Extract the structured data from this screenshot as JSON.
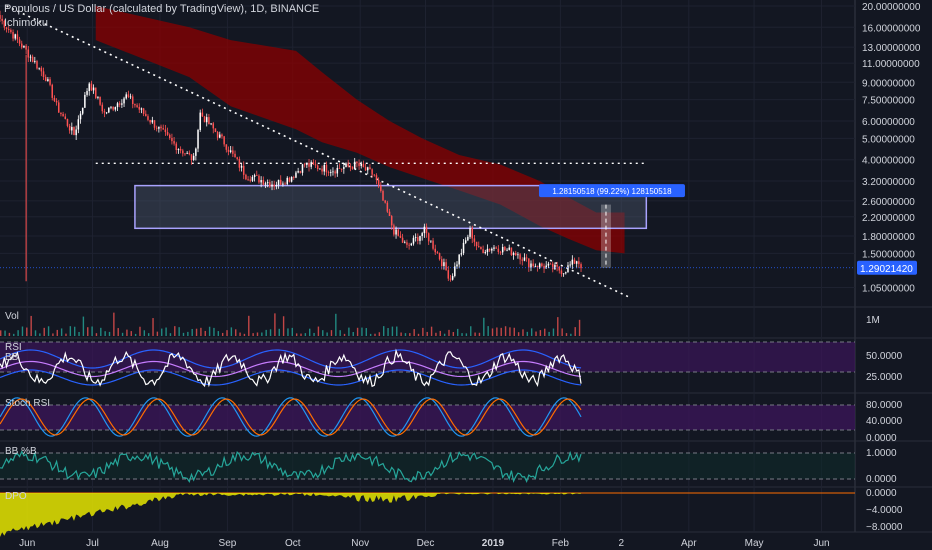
{
  "header": {
    "symbol_line": "Populous / US Dollar (calculated by TradingView), 1D, BINANCE",
    "indicator": "Ichimoku"
  },
  "colors": {
    "background": "#131722",
    "grid": "#1e2230",
    "cloud": "#8b0000",
    "candle_up": "#ffffff",
    "candle_down": "#ff5252",
    "zone_fill": "#4a5568",
    "zone_border": "#a9a3ff",
    "rsi_line": "#ffffff",
    "bb_band": "#2962ff",
    "bb_basis": "#c77dff",
    "panel_purple": "#3a1558",
    "stoch_k": "#2196f3",
    "stoch_d": "#ff6d00",
    "bbpct_line": "#26a69a",
    "dpo_fill": "#e6e600",
    "price_badge": "#2962ff"
  },
  "panels": {
    "vol": {
      "label": "Vol",
      "axis_labels": [
        "1M"
      ]
    },
    "rsi": {
      "label": "RSI",
      "sub_label": "BB",
      "axis_labels": [
        "50.0000",
        "25.0000"
      ]
    },
    "stoch": {
      "label": "Stoch RSI",
      "axis_labels": [
        "80.0000",
        "40.0000",
        "0.0000"
      ]
    },
    "bbpct": {
      "label": "BB %B",
      "axis_labels": [
        "1.0000",
        "0.0000"
      ]
    },
    "dpo": {
      "label": "DPO",
      "axis_labels": [
        "0.0000",
        "−4.0000",
        "−8.0000"
      ]
    }
  },
  "chart_data": {
    "type": "candlestick",
    "x_axis_labels": [
      "Jun",
      "Jul",
      "Aug",
      "Sep",
      "Oct",
      "Nov",
      "Dec",
      "2019",
      "Feb",
      "2",
      "Apr",
      "May",
      "Jun"
    ],
    "price_axis_labels": [
      "20.00000000",
      "16.00000000",
      "13.00000000",
      "11.00000000",
      "9.00000000",
      "7.50000000",
      "6.00000000",
      "5.00000000",
      "4.00000000",
      "3.20000000",
      "2.60000000",
      "2.20000000",
      "1.80000000",
      "1.50000000",
      "1.05000000"
    ],
    "last_price": "1.29021420",
    "measure_label": "1.28150518 (99.22%) 128150518",
    "resistance_level": 3.85,
    "zone": {
      "low": 1.95,
      "high": 3.05
    },
    "price_range": {
      "min": 0.95,
      "max": 20
    },
    "time_range": "2018-05-25 to 2019-06-15",
    "price_path": [
      {
        "date": "2018-05-25",
        "close": 17.5
      },
      {
        "date": "2018-06-06",
        "close": 12.5
      },
      {
        "date": "2018-06-15",
        "close": 9.5
      },
      {
        "date": "2018-06-20",
        "close": 7.0
      },
      {
        "date": "2018-06-28",
        "close": 5.2
      },
      {
        "date": "2018-07-05",
        "close": 9.0
      },
      {
        "date": "2018-07-12",
        "close": 6.5
      },
      {
        "date": "2018-07-22",
        "close": 7.8
      },
      {
        "date": "2018-08-01",
        "close": 6.2
      },
      {
        "date": "2018-08-12",
        "close": 4.8
      },
      {
        "date": "2018-08-22",
        "close": 4.0
      },
      {
        "date": "2018-08-25",
        "close": 6.5
      },
      {
        "date": "2018-09-05",
        "close": 4.8
      },
      {
        "date": "2018-09-15",
        "close": 3.4
      },
      {
        "date": "2018-09-28",
        "close": 3.1
      },
      {
        "date": "2018-10-05",
        "close": 3.3
      },
      {
        "date": "2018-10-12",
        "close": 3.8
      },
      {
        "date": "2018-10-25",
        "close": 3.6
      },
      {
        "date": "2018-11-05",
        "close": 3.8
      },
      {
        "date": "2018-11-13",
        "close": 3.4
      },
      {
        "date": "2018-11-17",
        "close": 2.6
      },
      {
        "date": "2018-11-22",
        "close": 1.9
      },
      {
        "date": "2018-11-28",
        "close": 1.6
      },
      {
        "date": "2018-12-06",
        "close": 1.9
      },
      {
        "date": "2018-12-12",
        "close": 1.5
      },
      {
        "date": "2018-12-18",
        "close": 1.15
      },
      {
        "date": "2018-12-22",
        "close": 1.45
      },
      {
        "date": "2018-12-27",
        "close": 1.9
      },
      {
        "date": "2018-12-31",
        "close": 1.55
      },
      {
        "date": "2019-01-08",
        "close": 1.6
      },
      {
        "date": "2019-01-18",
        "close": 1.5
      },
      {
        "date": "2019-01-23",
        "close": 1.35
      },
      {
        "date": "2019-02-01",
        "close": 1.3
      },
      {
        "date": "2019-02-08",
        "close": 1.25
      },
      {
        "date": "2019-02-14",
        "close": 1.4
      },
      {
        "date": "2019-02-17",
        "close": 1.29
      }
    ],
    "cloud_top": [
      {
        "date": "2018-07-08",
        "value": 20
      },
      {
        "date": "2018-08-20",
        "value": 16
      },
      {
        "date": "2018-09-08",
        "value": 14
      },
      {
        "date": "2018-10-08",
        "value": 12.5
      },
      {
        "date": "2018-10-20",
        "value": 10
      },
      {
        "date": "2018-11-05",
        "value": 7.5
      },
      {
        "date": "2018-11-20",
        "value": 6
      },
      {
        "date": "2018-12-05",
        "value": 5
      },
      {
        "date": "2018-12-22",
        "value": 4.2
      },
      {
        "date": "2019-01-10",
        "value": 3.8
      },
      {
        "date": "2019-01-28",
        "value": 3.2
      },
      {
        "date": "2019-02-10",
        "value": 2.7
      },
      {
        "date": "2019-02-23",
        "value": 2.3
      },
      {
        "date": "2019-03-08",
        "value": 2.3
      }
    ],
    "cloud_bottom": [
      {
        "date": "2018-07-08",
        "value": 14
      },
      {
        "date": "2018-08-20",
        "value": 9.5
      },
      {
        "date": "2018-09-08",
        "value": 7
      },
      {
        "date": "2018-10-08",
        "value": 5.5
      },
      {
        "date": "2018-10-20",
        "value": 4.8
      },
      {
        "date": "2018-11-05",
        "value": 4.3
      },
      {
        "date": "2018-11-20",
        "value": 3.7
      },
      {
        "date": "2018-12-05",
        "value": 3.3
      },
      {
        "date": "2018-12-22",
        "value": 2.9
      },
      {
        "date": "2019-01-10",
        "value": 2.5
      },
      {
        "date": "2019-01-28",
        "value": 2.0
      },
      {
        "date": "2019-02-10",
        "value": 1.75
      },
      {
        "date": "2019-02-23",
        "value": 1.55
      },
      {
        "date": "2019-03-08",
        "value": 1.5
      }
    ],
    "trendline": [
      {
        "date": "2018-05-28",
        "value": 20
      },
      {
        "date": "2019-03-10",
        "value": 0.95
      }
    ]
  }
}
